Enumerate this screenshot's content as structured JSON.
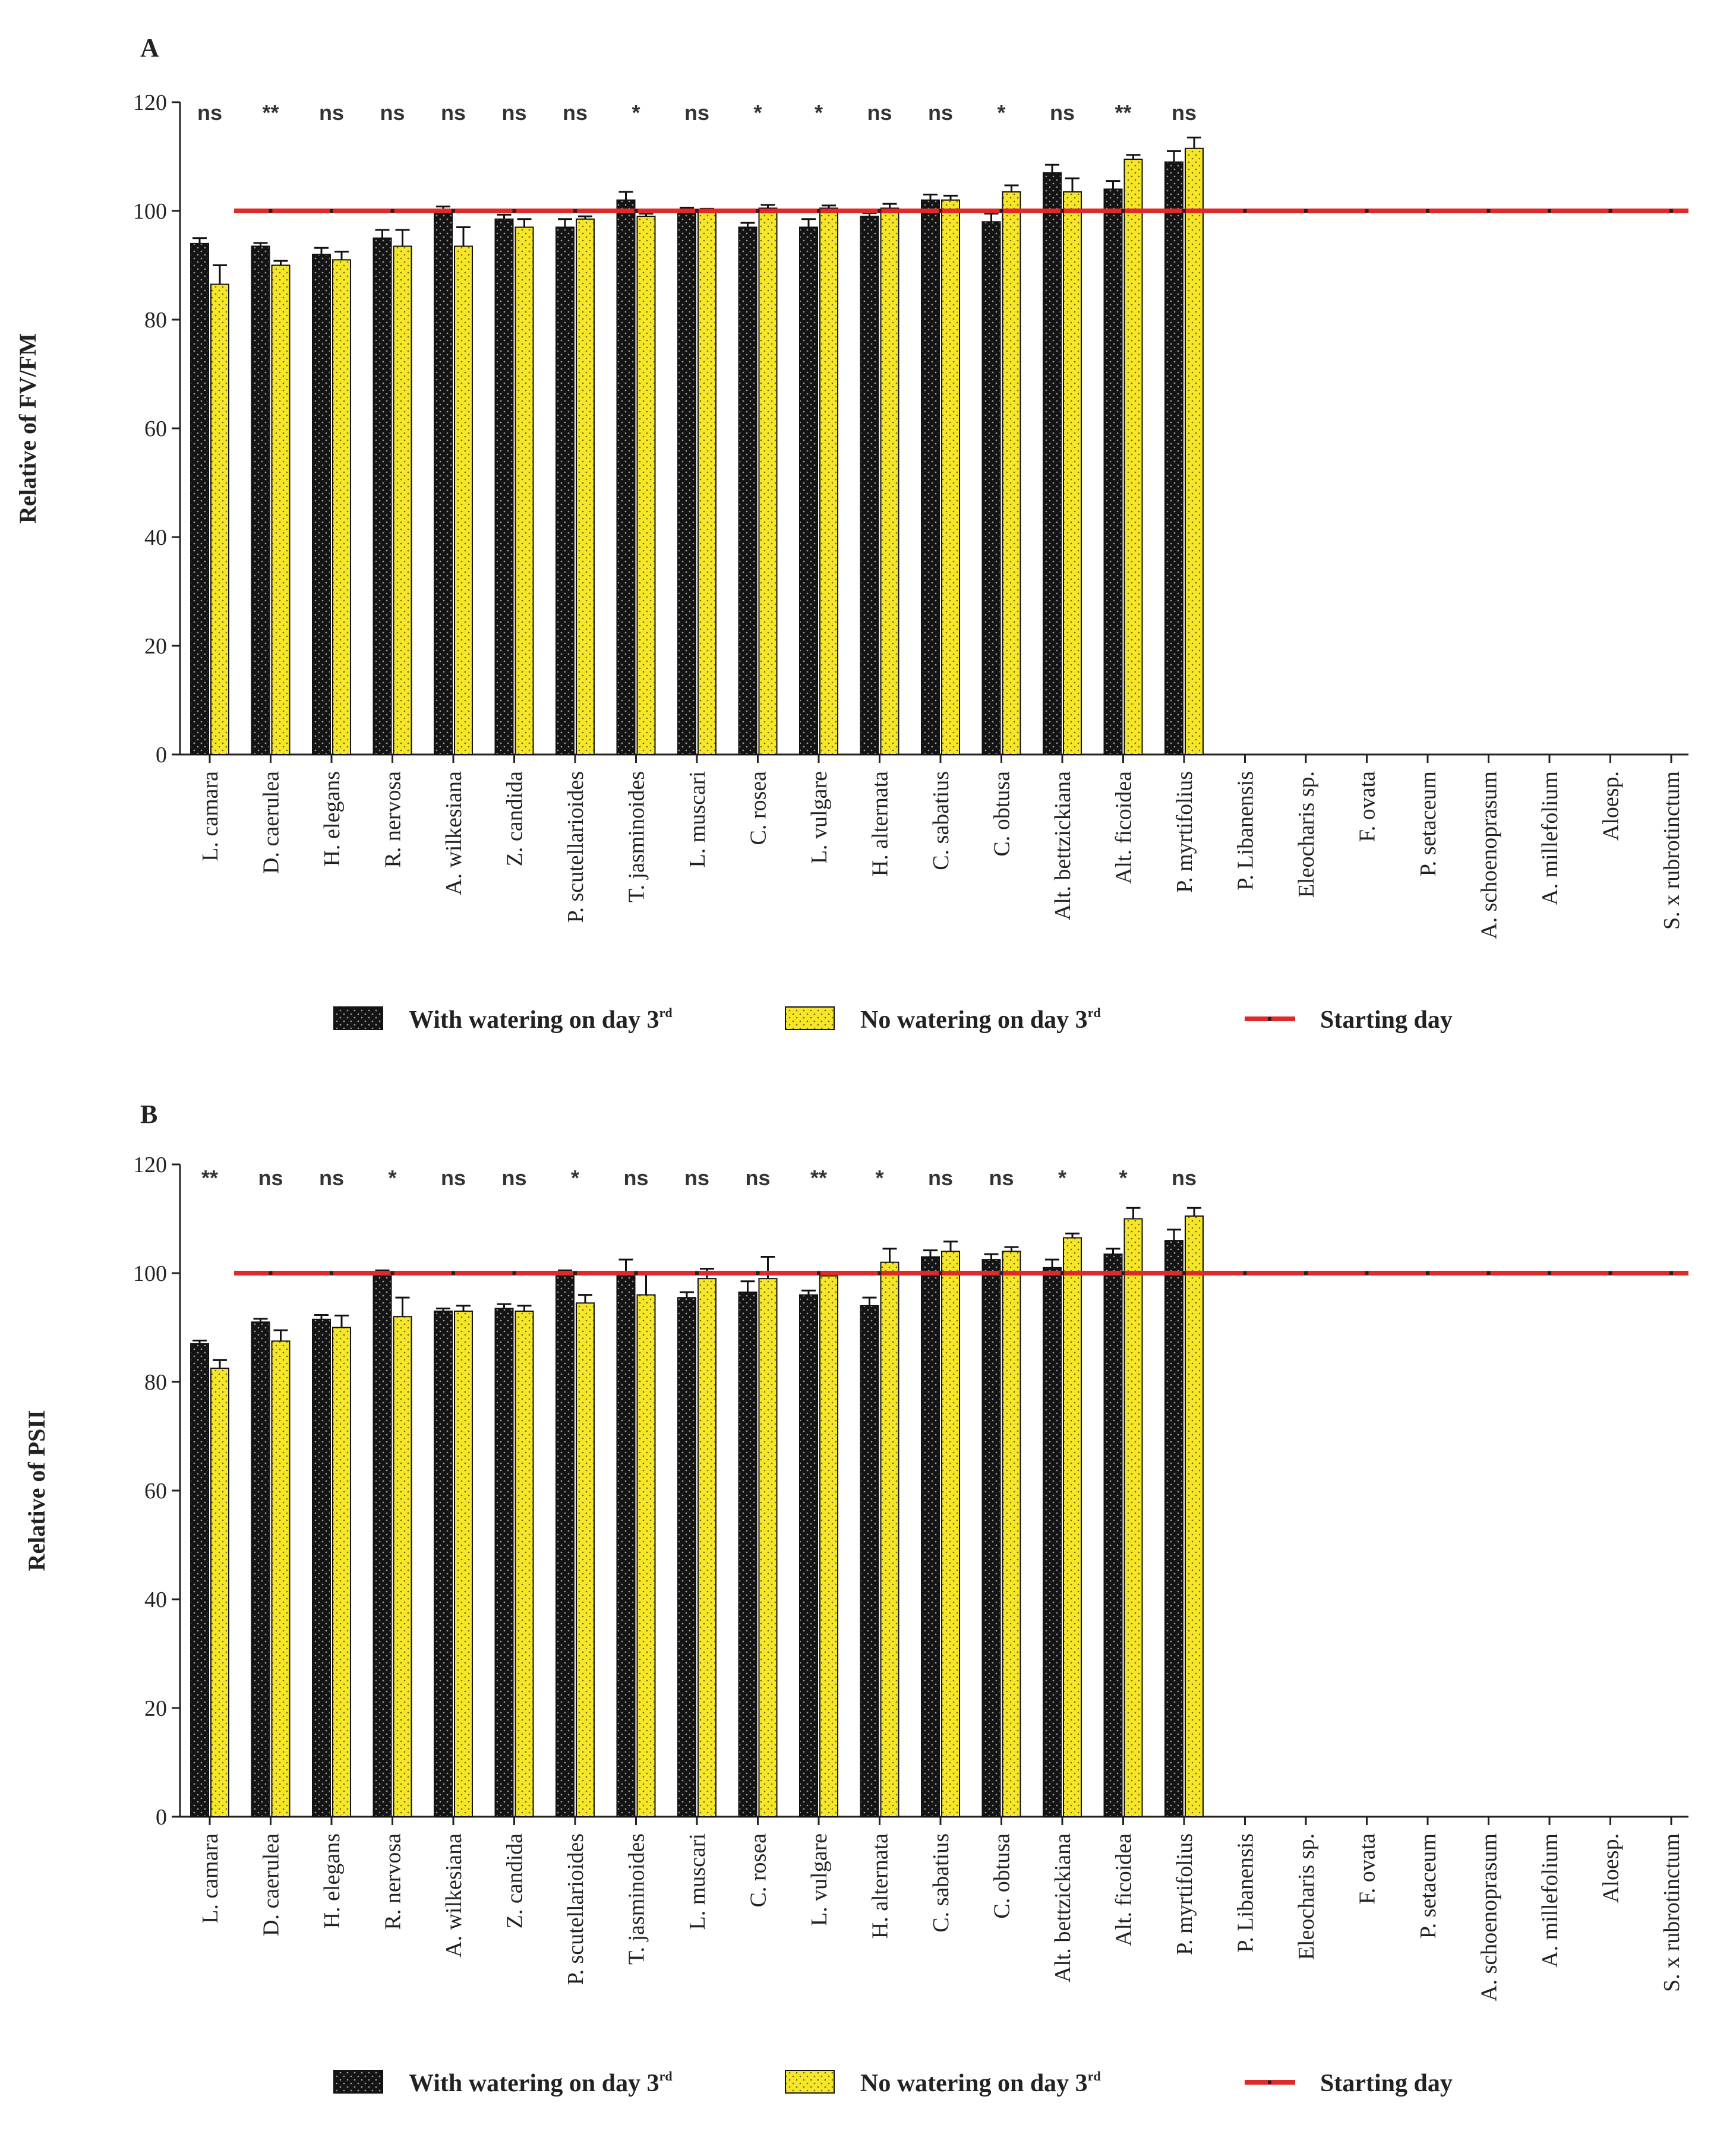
{
  "chart_data": [
    {
      "type": "bar",
      "panel": "A",
      "ylabel": "Relative of FV/FM",
      "ylim": [
        0,
        120
      ],
      "yticks": [
        0,
        20,
        40,
        60,
        80,
        100,
        120
      ],
      "baseline": 100,
      "categories": [
        "L. camara",
        "D. caerulea",
        "H. elegans",
        "R. nervosa",
        "A. wilkesiana",
        "Z. candida",
        "P. scutellarioides",
        "T. jasminoides",
        "L. muscari",
        "C. rosea",
        "L. vulgare",
        "H. alternata",
        "C. sabatius",
        "C. obtusa",
        "Alt. bettzickiana",
        "Alt. ficoidea",
        "P. myrtifolius",
        "P. Libanensis",
        "Eleocharis sp.",
        "F. ovata",
        "P. setaceum",
        "A. schoenoprasum",
        "A. millefolium",
        "Aloesp.",
        "S. x rubrotinctum"
      ],
      "significance": [
        "ns",
        "**",
        "ns",
        "ns",
        "ns",
        "ns",
        "ns",
        "*",
        "ns",
        "*",
        "*",
        "ns",
        "ns",
        "*",
        "ns",
        "**",
        "ns",
        "",
        "",
        "",
        "",
        "",
        "",
        "",
        ""
      ],
      "series": [
        {
          "name": "With watering on day 3rd",
          "values": [
            94,
            93.5,
            92,
            95,
            100,
            98.5,
            97,
            102,
            100,
            97,
            97,
            99,
            102,
            98,
            107,
            104,
            109,
            null,
            null,
            null,
            null,
            null,
            null,
            null,
            null
          ],
          "errors": [
            1,
            0.6,
            1.2,
            1.5,
            0.8,
            0.8,
            1.5,
            1.5,
            0.6,
            0.8,
            1.5,
            0.6,
            1,
            1.5,
            1.5,
            1.5,
            2,
            null,
            null,
            null,
            null,
            null,
            null,
            null,
            null
          ]
        },
        {
          "name": "No watering on day 3rd",
          "values": [
            86.5,
            90,
            91,
            93.5,
            93.5,
            97,
            98.5,
            99,
            100,
            100.5,
            100.5,
            100.5,
            102,
            103.5,
            103.5,
            109.5,
            111.5,
            null,
            null,
            null,
            null,
            null,
            null,
            null,
            null
          ],
          "errors": [
            3.5,
            0.8,
            1.5,
            3,
            3.5,
            1.5,
            0.5,
            0.5,
            0.4,
            0.6,
            0.5,
            0.8,
            0.8,
            1.2,
            2.5,
            0.8,
            2,
            null,
            null,
            null,
            null,
            null,
            null,
            null,
            null
          ]
        }
      ]
    },
    {
      "type": "bar",
      "panel": "B",
      "ylabel": "Relative of PSII",
      "ylim": [
        0,
        120
      ],
      "yticks": [
        0,
        20,
        40,
        60,
        80,
        100,
        120
      ],
      "baseline": 100,
      "categories": [
        "L. camara",
        "D. caerulea",
        "H. elegans",
        "R. nervosa",
        "A. wilkesiana",
        "Z. candida",
        "P. scutellarioides",
        "T. jasminoides",
        "L. muscari",
        "C. rosea",
        "L. vulgare",
        "H. alternata",
        "C. sabatius",
        "C. obtusa",
        "Alt. bettzickiana",
        "Alt. ficoidea",
        "P. myrtifolius",
        "P. Libanensis",
        "Eleocharis sp.",
        "F. ovata",
        "P. setaceum",
        "A. schoenoprasum",
        "A. millefolium",
        "Aloesp.",
        "S. x rubrotinctum"
      ],
      "significance": [
        "**",
        "ns",
        "ns",
        "*",
        "ns",
        "ns",
        "*",
        "ns",
        "ns",
        "ns",
        "**",
        "*",
        "ns",
        "ns",
        "*",
        "*",
        "ns",
        "",
        "",
        "",
        "",
        "",
        "",
        "",
        ""
      ],
      "series": [
        {
          "name": "With watering on day 3rd",
          "values": [
            87,
            91,
            91.5,
            100,
            93,
            93.5,
            100,
            100,
            95.5,
            96.5,
            96,
            94,
            103,
            102.5,
            101,
            103.5,
            106,
            null,
            null,
            null,
            null,
            null,
            null,
            null,
            null
          ],
          "errors": [
            0.6,
            0.6,
            0.8,
            0.5,
            0.5,
            0.8,
            0.5,
            2.5,
            1,
            2,
            0.8,
            1.5,
            1.2,
            1,
            1.5,
            1,
            2,
            null,
            null,
            null,
            null,
            null,
            null,
            null,
            null
          ]
        },
        {
          "name": "No watering on day 3rd",
          "values": [
            82.5,
            87.5,
            90,
            92,
            93,
            93,
            94.5,
            96,
            99,
            99,
            99.5,
            102,
            104,
            104,
            106.5,
            110,
            110.5,
            null,
            null,
            null,
            null,
            null,
            null,
            null,
            null
          ],
          "errors": [
            1.5,
            2,
            2.2,
            3.5,
            1,
            1,
            1.5,
            4,
            1.8,
            4,
            0.5,
            2.5,
            1.8,
            0.8,
            0.8,
            2,
            1.5,
            null,
            null,
            null,
            null,
            null,
            null,
            null,
            null
          ]
        }
      ]
    }
  ],
  "legend": {
    "with_watering": "With watering on day 3",
    "no_watering": "No watering on day 3",
    "superscript": "rd",
    "starting_day": "Starting day"
  },
  "colors": {
    "with_watering": "#141414",
    "no_watering": "#f5e62a",
    "baseline": "#e02a2a"
  }
}
